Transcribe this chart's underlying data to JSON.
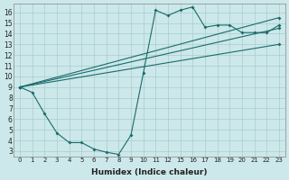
{
  "xlabel": "Humidex (Indice chaleur)",
  "bg_color": "#cce8ea",
  "line_color": "#1a6b6b",
  "grid_color": "#aacccc",
  "xtick_labels": [
    "0",
    "1",
    "2",
    "3",
    "4",
    "5",
    "6",
    "7",
    "8",
    "9",
    "10",
    "11",
    "12",
    "15",
    "16",
    "17",
    "18",
    "19",
    "20",
    "21",
    "22",
    "23"
  ],
  "yticks": [
    3,
    4,
    5,
    6,
    7,
    8,
    9,
    10,
    11,
    12,
    13,
    14,
    15,
    16
  ],
  "ylim": [
    2.5,
    16.8
  ],
  "series1": {
    "xi": [
      0,
      1,
      2,
      3,
      4,
      5,
      6,
      7,
      8,
      9,
      10,
      11,
      12,
      13,
      14,
      15,
      16,
      17,
      18,
      19,
      20,
      21
    ],
    "y": [
      9.0,
      8.5,
      6.5,
      4.7,
      3.8,
      3.8,
      3.2,
      2.9,
      2.7,
      4.5,
      10.3,
      16.2,
      15.7,
      16.2,
      16.5,
      14.6,
      14.8,
      14.8,
      14.1,
      14.1,
      14.1,
      14.8
    ]
  },
  "series2": {
    "xi": [
      0,
      21
    ],
    "y": [
      9.0,
      15.5
    ]
  },
  "series3": {
    "xi": [
      0,
      21
    ],
    "y": [
      9.0,
      14.5
    ]
  },
  "series4": {
    "xi": [
      0,
      21
    ],
    "y": [
      9.0,
      13.0
    ]
  }
}
